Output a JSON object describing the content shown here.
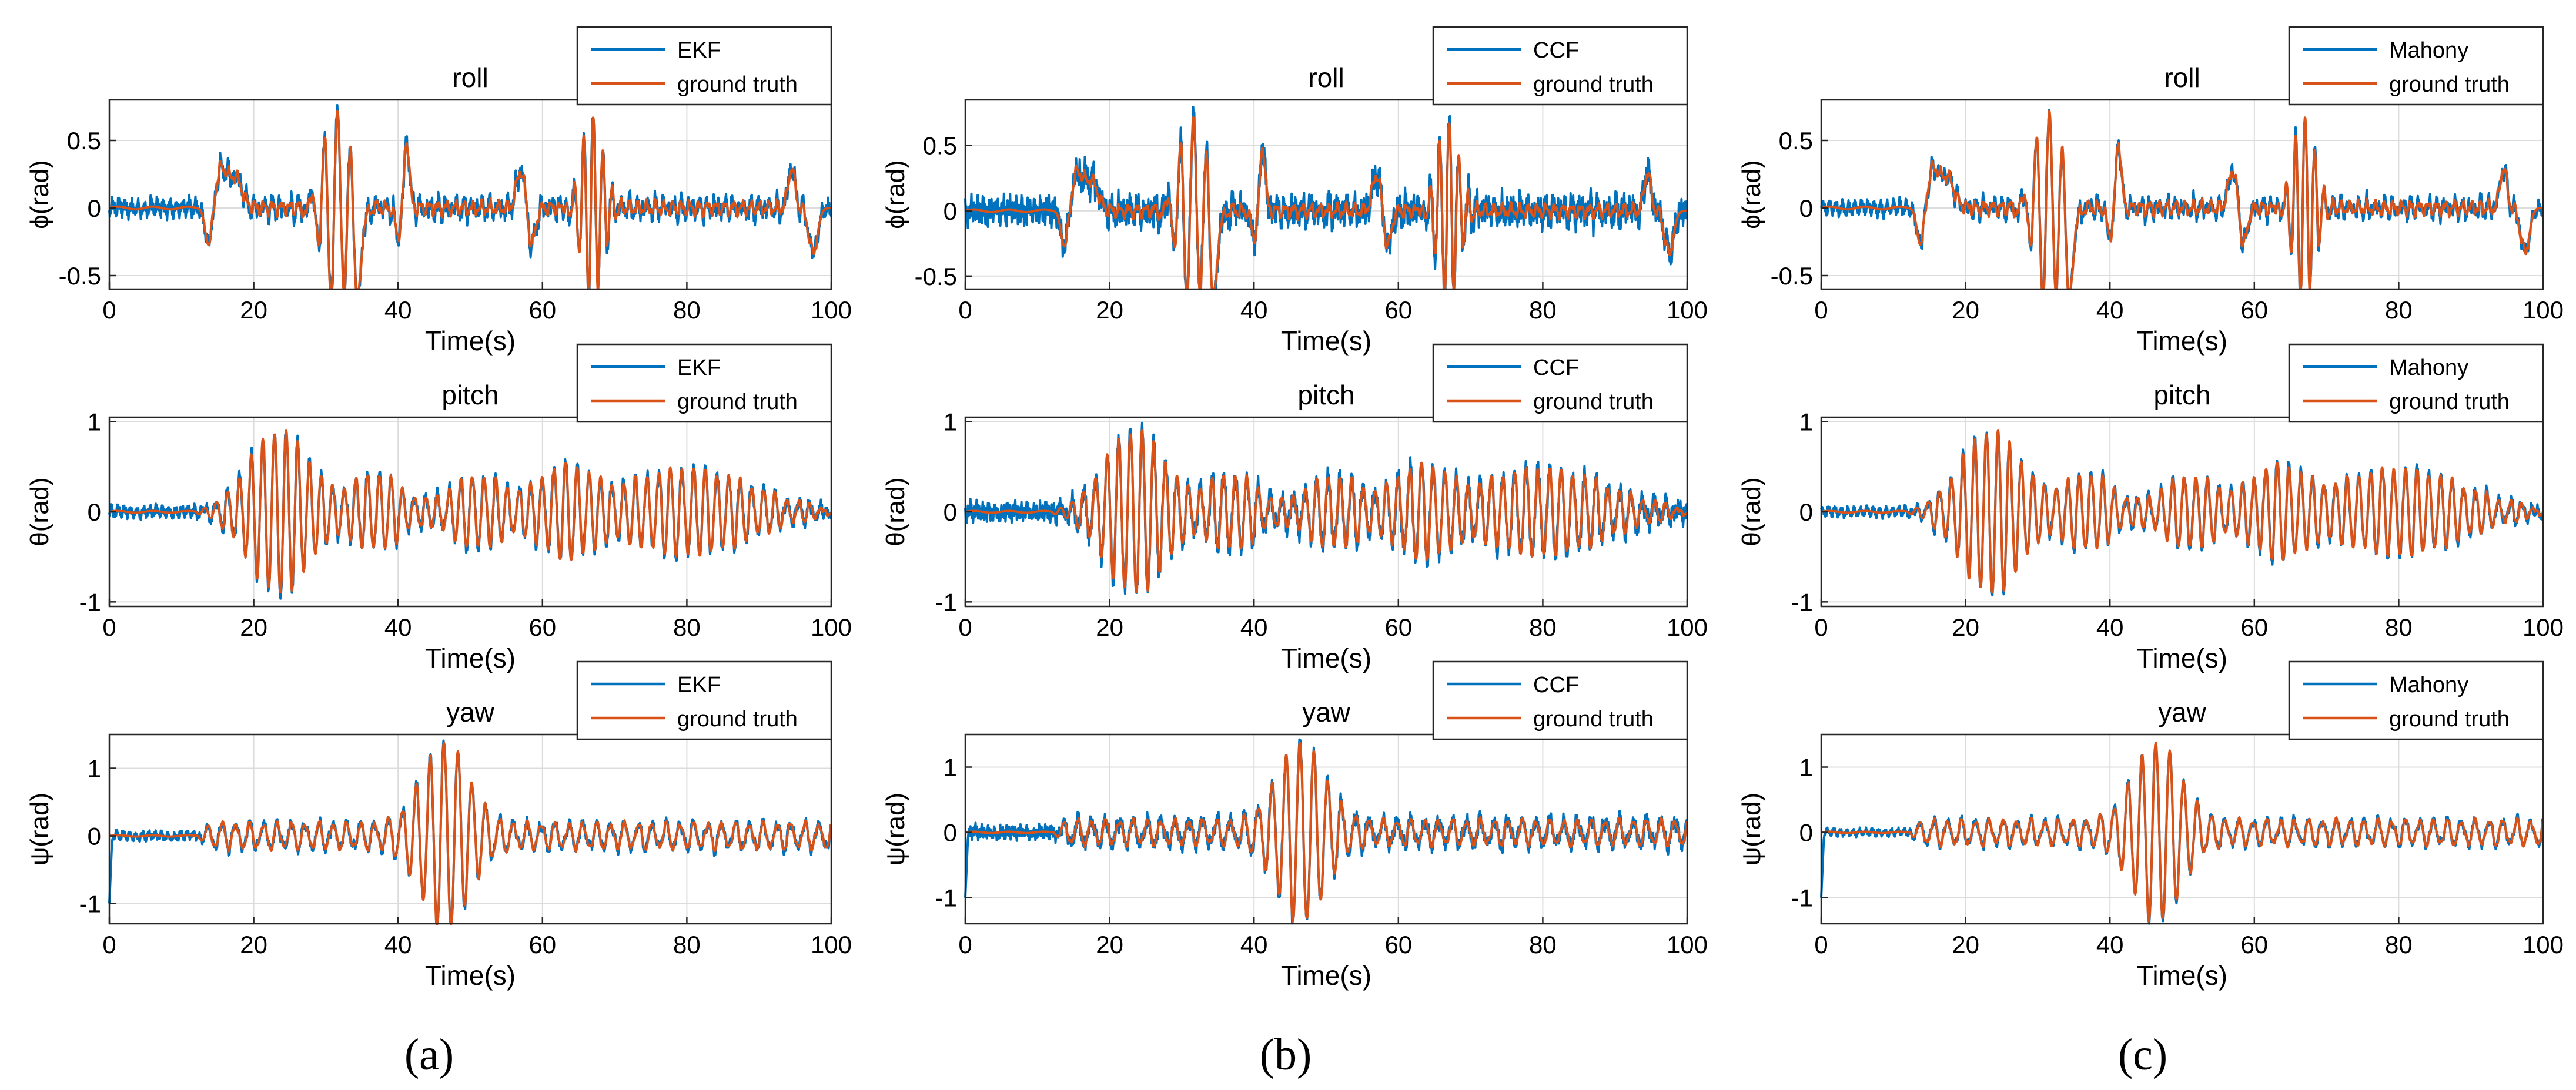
{
  "columns": [
    {
      "label": "(a)",
      "estimator": "EKF"
    },
    {
      "label": "(b)",
      "estimator": "CCF"
    },
    {
      "label": "(c)",
      "estimator": "Mahony"
    }
  ],
  "colors": {
    "estimate": "#0072BD",
    "truth": "#D95319",
    "grid": "#dcdcdc",
    "axis": "#262626"
  },
  "chart_data": [
    {
      "type": "line",
      "column": 0,
      "title": "roll",
      "ylabel": "ϕ(rad)",
      "xlabel": "Time(s)",
      "xlim": [
        0,
        100
      ],
      "ylim": [
        -0.6,
        0.8
      ],
      "xticks": [
        0,
        20,
        40,
        60,
        80,
        100
      ],
      "yticks": [
        -0.5,
        0,
        0.5
      ],
      "grid": true,
      "legend": "top-right",
      "series": [
        {
          "name": "EKF",
          "seed": 11
        },
        {
          "name": "ground truth",
          "seed": 0
        }
      ]
    },
    {
      "type": "line",
      "column": 0,
      "title": "pitch",
      "ylabel": "θ(rad)",
      "xlabel": "Time(s)",
      "xlim": [
        0,
        100
      ],
      "ylim": [
        -1.05,
        1.05
      ],
      "xticks": [
        0,
        20,
        40,
        60,
        80,
        100
      ],
      "yticks": [
        -1,
        0,
        1
      ],
      "grid": true,
      "legend": "top-right",
      "series": [
        {
          "name": "EKF",
          "seed": 12
        },
        {
          "name": "ground truth",
          "seed": 0
        }
      ]
    },
    {
      "type": "line",
      "column": 0,
      "title": "yaw",
      "ylabel": "ψ(rad)",
      "xlabel": "Time(s)",
      "xlim": [
        0,
        100
      ],
      "ylim": [
        -1.3,
        1.5
      ],
      "xticks": [
        0,
        20,
        40,
        60,
        80,
        100
      ],
      "yticks": [
        -1,
        0,
        1
      ],
      "grid": true,
      "legend": "top-right",
      "series": [
        {
          "name": "EKF",
          "seed": 13
        },
        {
          "name": "ground truth",
          "seed": 0
        }
      ]
    },
    {
      "type": "line",
      "column": 1,
      "title": "roll",
      "ylabel": "ϕ(rad)",
      "xlabel": "Time(s)",
      "xlim": [
        0,
        100
      ],
      "ylim": [
        -0.6,
        0.85
      ],
      "xticks": [
        0,
        20,
        40,
        60,
        80,
        100
      ],
      "yticks": [
        -0.5,
        0,
        0.5
      ],
      "grid": true,
      "legend": "top-right",
      "series": [
        {
          "name": "CCF",
          "seed": 21
        },
        {
          "name": "ground truth",
          "seed": 0
        }
      ]
    },
    {
      "type": "line",
      "column": 1,
      "title": "pitch",
      "ylabel": "θ(rad)",
      "xlabel": "Time(s)",
      "xlim": [
        0,
        100
      ],
      "ylim": [
        -1.05,
        1.05
      ],
      "xticks": [
        0,
        20,
        40,
        60,
        80,
        100
      ],
      "yticks": [
        -1,
        0,
        1
      ],
      "grid": true,
      "legend": "top-right",
      "series": [
        {
          "name": "CCF",
          "seed": 22
        },
        {
          "name": "ground truth",
          "seed": 0
        }
      ]
    },
    {
      "type": "line",
      "column": 1,
      "title": "yaw",
      "ylabel": "ψ(rad)",
      "xlabel": "Time(s)",
      "xlim": [
        0,
        100
      ],
      "ylim": [
        -1.4,
        1.5
      ],
      "xticks": [
        0,
        20,
        40,
        60,
        80,
        100
      ],
      "yticks": [
        -1,
        0,
        1
      ],
      "grid": true,
      "legend": "top-right",
      "series": [
        {
          "name": "CCF",
          "seed": 23
        },
        {
          "name": "ground truth",
          "seed": 0
        }
      ]
    },
    {
      "type": "line",
      "column": 2,
      "title": "roll",
      "ylabel": "ϕ(rad)",
      "xlabel": "Time(s)",
      "xlim": [
        0,
        100
      ],
      "ylim": [
        -0.6,
        0.8
      ],
      "xticks": [
        0,
        20,
        40,
        60,
        80,
        100
      ],
      "yticks": [
        -0.5,
        0,
        0.5
      ],
      "grid": true,
      "legend": "top-right",
      "series": [
        {
          "name": "Mahony",
          "seed": 31
        },
        {
          "name": "ground truth",
          "seed": 0
        }
      ]
    },
    {
      "type": "line",
      "column": 2,
      "title": "pitch",
      "ylabel": "θ(rad)",
      "xlabel": "Time(s)",
      "xlim": [
        0,
        100
      ],
      "ylim": [
        -1.05,
        1.05
      ],
      "xticks": [
        0,
        20,
        40,
        60,
        80,
        100
      ],
      "yticks": [
        -1,
        0,
        1
      ],
      "grid": true,
      "legend": "top-right",
      "series": [
        {
          "name": "Mahony",
          "seed": 32
        },
        {
          "name": "ground truth",
          "seed": 0
        }
      ]
    },
    {
      "type": "line",
      "column": 2,
      "title": "yaw",
      "ylabel": "ψ(rad)",
      "xlabel": "Time(s)",
      "xlim": [
        0,
        100
      ],
      "ylim": [
        -1.4,
        1.5
      ],
      "xticks": [
        0,
        20,
        40,
        60,
        80,
        100
      ],
      "yticks": [
        -1,
        0,
        1
      ],
      "grid": true,
      "legend": "top-right",
      "series": [
        {
          "name": "Mahony",
          "seed": 33
        },
        {
          "name": "ground truth",
          "seed": 0
        }
      ]
    }
  ]
}
